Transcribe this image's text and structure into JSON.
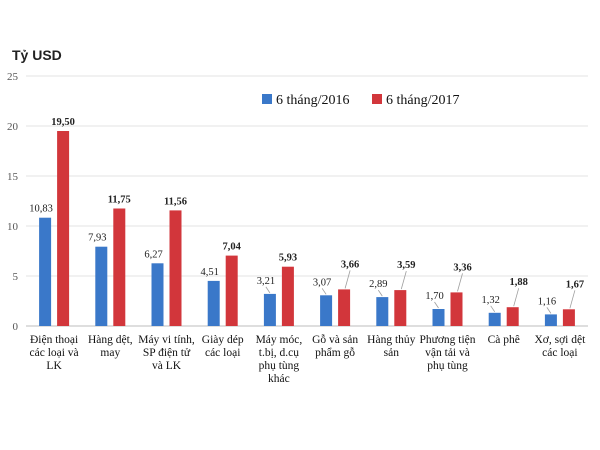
{
  "chart_data": {
    "type": "bar",
    "unit_label": "Tỷ USD",
    "ylim": [
      0,
      25
    ],
    "yticks": [
      0,
      5,
      10,
      15,
      20,
      25
    ],
    "grid": true,
    "legend_position": "top-right",
    "categories": [
      [
        "Điện thoại",
        "các loại và",
        "LK"
      ],
      [
        "Hàng dệt,",
        "may"
      ],
      [
        "Máy vi tính,",
        "SP điện tử",
        "và LK"
      ],
      [
        "Giày dép",
        "các loại"
      ],
      [
        "Máy móc,",
        "t.bị, d.cụ",
        "phụ tùng",
        "khác"
      ],
      [
        "Gỗ và sản",
        "phẩm gỗ"
      ],
      [
        "Hàng thủy",
        "sản"
      ],
      [
        "Phương tiện",
        "vận tải và",
        "phụ tùng"
      ],
      [
        "Cà phê"
      ],
      [
        "Xơ, sợi dệt",
        "các loại"
      ]
    ],
    "series": [
      {
        "name": "6 tháng/2016",
        "color": "#3a78c9",
        "values": [
          10.83,
          7.93,
          6.27,
          4.51,
          3.21,
          3.07,
          2.89,
          1.7,
          1.32,
          1.16
        ],
        "labels": [
          "10,83",
          "7,93",
          "6,27",
          "4,51",
          "3,21",
          "3,07",
          "2,89",
          "1,70",
          "1,32",
          "1,16"
        ]
      },
      {
        "name": "6 tháng/2017",
        "color": "#d2363b",
        "values": [
          19.5,
          11.75,
          11.56,
          7.04,
          5.93,
          3.66,
          3.59,
          3.36,
          1.88,
          1.67
        ],
        "labels": [
          "19,50",
          "11,75",
          "11,56",
          "7,04",
          "5,93",
          "3,66",
          "3,59",
          "3,36",
          "1,88",
          "1,67"
        ]
      }
    ]
  }
}
